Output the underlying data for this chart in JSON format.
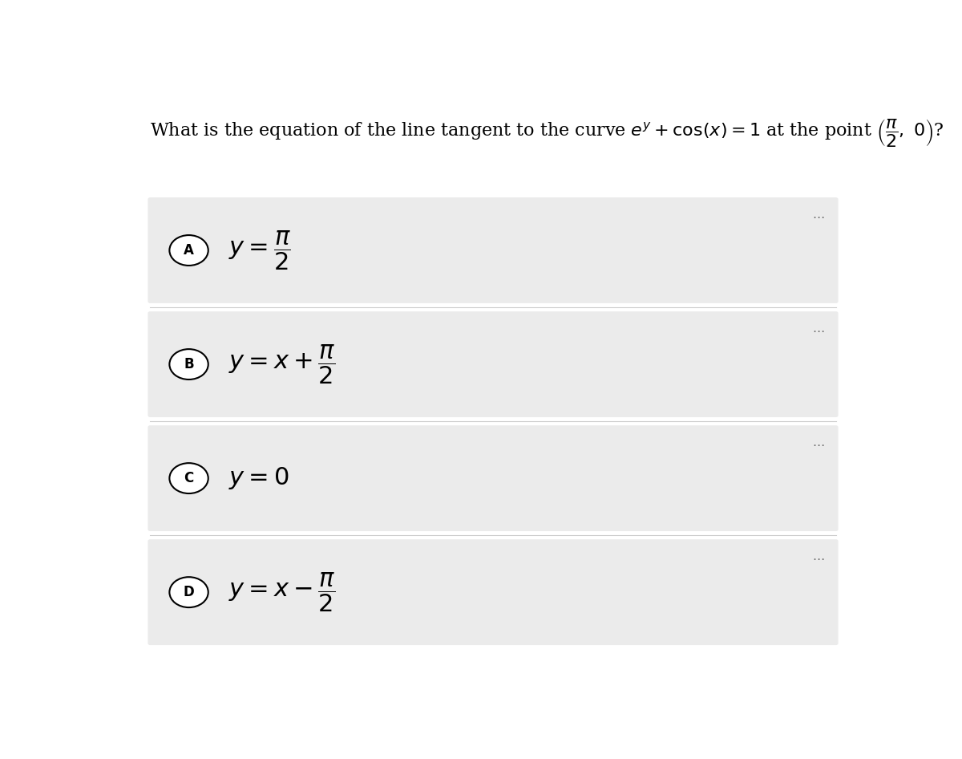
{
  "options": [
    {
      "label": "A",
      "formula": "$y = \\dfrac{\\pi}{2}$"
    },
    {
      "label": "B",
      "formula": "$y = x + \\dfrac{\\pi}{2}$"
    },
    {
      "label": "C",
      "formula": "$y = 0$"
    },
    {
      "label": "D",
      "formula": "$y = x - \\dfrac{\\pi}{2}$"
    }
  ],
  "bg_color": "#ffffff",
  "option_bg_color": "#ebebeb",
  "separator_color": "#cccccc",
  "text_color": "#000000",
  "circle_color": "#000000",
  "dots_color": "#666666",
  "font_size_question": 16,
  "font_size_option": 22,
  "font_size_label": 12
}
